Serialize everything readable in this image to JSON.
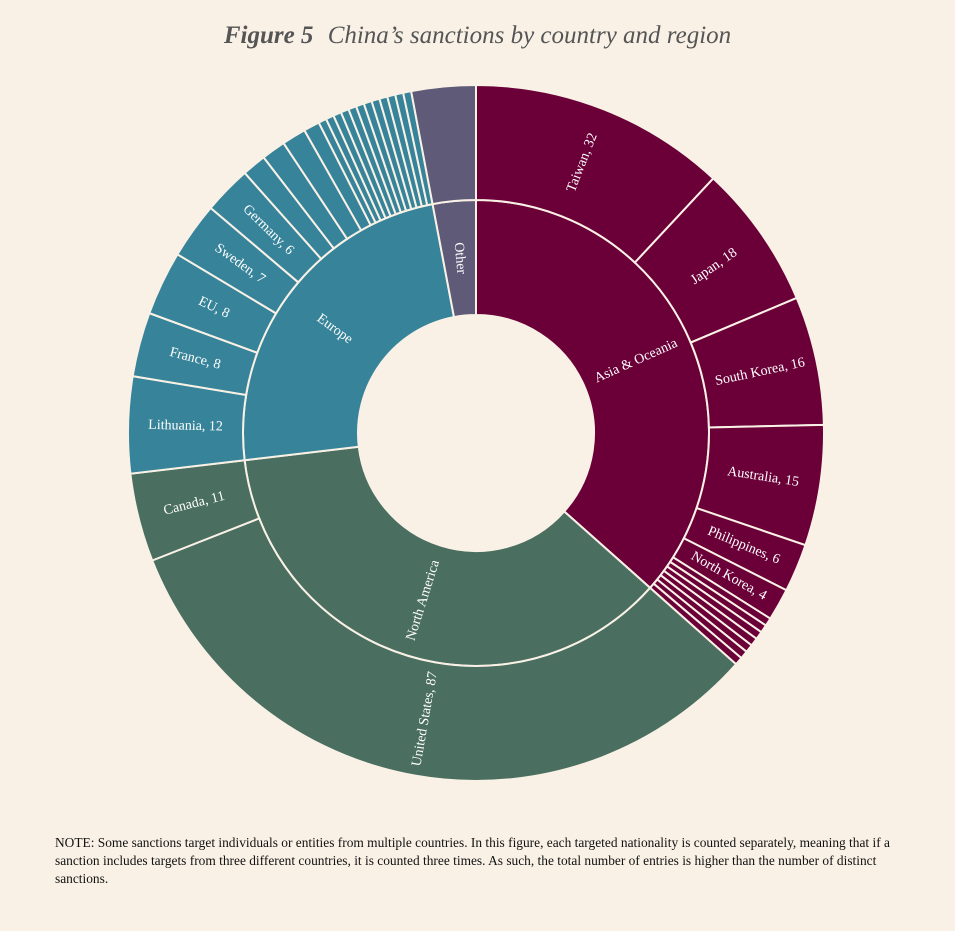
{
  "title": {
    "figure": "Figure 5",
    "text": "China’s sanctions by country and region"
  },
  "note": "NOTE: Some sanctions target individuals or entities from multiple countries. In this figure, each targeted nationality is counted separately, meaning that if a sanction includes targets from three different countries, it is counted three times. As such, the total number of entries is higher than the number of distinct sanctions.",
  "chart_data": {
    "type": "sunburst",
    "colors": {
      "Asia & Oceania": "#6b0038",
      "North America": "#4a6e5f",
      "Europe": "#37849a",
      "Other": "#5e5a77",
      "stroke": "#f9f1e6"
    },
    "regions": [
      {
        "name": "Asia & Oceania",
        "label": "Asia & Oceania",
        "countries": [
          {
            "name": "Taiwan",
            "value": 32,
            "label": "Taiwan, 32"
          },
          {
            "name": "Japan",
            "value": 18,
            "label": "Japan, 18"
          },
          {
            "name": "South Korea",
            "value": 16,
            "label": "South Korea, 16"
          },
          {
            "name": "Australia",
            "value": 15,
            "label": "Australia, 15"
          },
          {
            "name": "Philippines",
            "value": 6,
            "label": "Philippines, 6"
          },
          {
            "name": "North Korea",
            "value": 4,
            "label": "North Korea, 4"
          },
          {
            "value": 1
          },
          {
            "value": 1
          },
          {
            "value": 1
          },
          {
            "value": 1
          },
          {
            "value": 1
          },
          {
            "value": 1
          },
          {
            "value": 1
          }
        ]
      },
      {
        "name": "North America",
        "label": "North America",
        "countries": [
          {
            "name": "United States",
            "value": 87,
            "label": "United States, 87"
          },
          {
            "name": "Canada",
            "value": 11,
            "label": "Canada, 11"
          }
        ]
      },
      {
        "name": "Europe",
        "label": "Europe",
        "countries": [
          {
            "name": "Lithuania",
            "value": 12,
            "label": "Lithuania, 12"
          },
          {
            "name": "France",
            "value": 8,
            "label": "France, 8"
          },
          {
            "name": "EU",
            "value": 8,
            "label": "EU, 8"
          },
          {
            "name": "Sweden",
            "value": 7,
            "label": "Sweden, 7"
          },
          {
            "name": "Germany",
            "value": 6,
            "label": "Germany, 6"
          },
          {
            "value": 3
          },
          {
            "value": 3
          },
          {
            "value": 3
          },
          {
            "value": 2
          },
          {
            "value": 1
          },
          {
            "value": 1
          },
          {
            "value": 1
          },
          {
            "value": 1
          },
          {
            "value": 1
          },
          {
            "value": 1
          },
          {
            "value": 1
          },
          {
            "value": 1
          },
          {
            "value": 1
          },
          {
            "value": 1
          },
          {
            "value": 1
          },
          {
            "value": 1
          }
        ]
      },
      {
        "name": "Other",
        "label": "Other",
        "countries": [
          {
            "value": 8
          }
        ]
      }
    ]
  }
}
